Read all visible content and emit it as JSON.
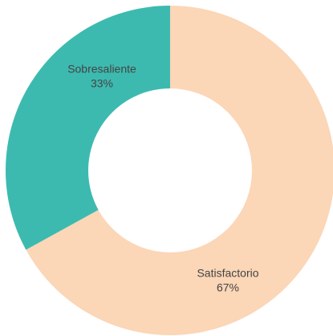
{
  "chart_data": {
    "type": "donut",
    "categories": [
      "Satisfactorio",
      "Sobresaliente"
    ],
    "values": [
      67,
      33
    ],
    "value_labels": [
      "67%",
      "33%"
    ],
    "colors": [
      "#fbd6b7",
      "#3dbab0"
    ]
  }
}
